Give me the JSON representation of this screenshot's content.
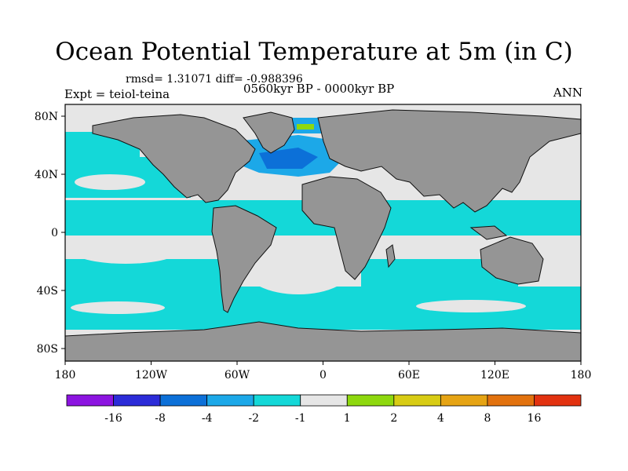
{
  "title": "Ocean Potential Temperature at 5m (in C)",
  "stats": "rmsd= 1.31071 diff= -0.988396",
  "expt_label": "Expt = teiol-teina",
  "period": "0560kyr BP - 0000kyr BP",
  "season": "ANN",
  "axes": {
    "lat_ticks": [
      "80N",
      "40N",
      "0",
      "40S",
      "80S"
    ],
    "lon_ticks": [
      "180",
      "120W",
      "60W",
      "0",
      "60E",
      "120E",
      "180"
    ]
  },
  "colorbar": {
    "colors": [
      "#8c14e0",
      "#2c2cd8",
      "#0c70d8",
      "#1ca8e8",
      "#14d8d8",
      "#e6e6e6",
      "#8ed80e",
      "#d8cc14",
      "#e6a414",
      "#e2720e",
      "#e23210"
    ],
    "labels": [
      "-16",
      "-8",
      "-4",
      "-2",
      "-1",
      "1",
      "2",
      "4",
      "8",
      "16"
    ]
  },
  "palette": {
    "land": "#959595",
    "ocean_neutral": "#e6e6e6",
    "cyan": "#14d8d8",
    "light_blue": "#1ca8e8",
    "blue": "#0c70d8",
    "green": "#8ed80e"
  }
}
